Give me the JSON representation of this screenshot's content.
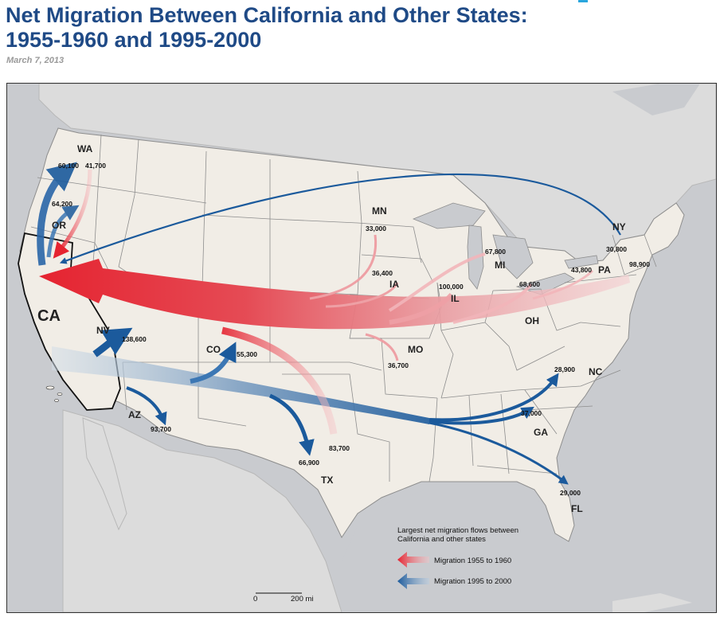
{
  "page": {
    "title": "Net Migration Between California and Other States: 1955-1960 and 1995-2000",
    "date": "March 7, 2013"
  },
  "map": {
    "states": [
      {
        "id": "wa",
        "label": "WA"
      },
      {
        "id": "or",
        "label": "OR"
      },
      {
        "id": "ca",
        "label": "CA"
      },
      {
        "id": "nv",
        "label": "NV"
      },
      {
        "id": "az",
        "label": "AZ"
      },
      {
        "id": "co",
        "label": "CO"
      },
      {
        "id": "tx",
        "label": "TX"
      },
      {
        "id": "mn",
        "label": "MN"
      },
      {
        "id": "ia",
        "label": "IA"
      },
      {
        "id": "mo",
        "label": "MO"
      },
      {
        "id": "il",
        "label": "IL"
      },
      {
        "id": "mi",
        "label": "MI"
      },
      {
        "id": "oh",
        "label": "OH"
      },
      {
        "id": "pa",
        "label": "PA"
      },
      {
        "id": "ny",
        "label": "NY"
      },
      {
        "id": "nc",
        "label": "NC"
      },
      {
        "id": "ga",
        "label": "GA"
      },
      {
        "id": "fl",
        "label": "FL"
      }
    ],
    "flows": [
      {
        "id": "wa-1995",
        "period": "1995-2000",
        "state": "WA",
        "value": "60,100"
      },
      {
        "id": "wa-1955",
        "period": "1955-1960",
        "state": "WA",
        "value": "41,700"
      },
      {
        "id": "or-1995",
        "period": "1995-2000",
        "state": "OR",
        "value": "64,200"
      },
      {
        "id": "mn-1955",
        "period": "1955-1960",
        "state": "MN",
        "value": "33,000"
      },
      {
        "id": "ia-1955",
        "period": "1955-1960",
        "state": "IA",
        "value": "36,400"
      },
      {
        "id": "mi-1955",
        "period": "1955-1960",
        "state": "MI",
        "value": "67,800"
      },
      {
        "id": "il-1955",
        "period": "1955-1960",
        "state": "IL",
        "value": "100,000"
      },
      {
        "id": "oh-1955",
        "period": "1955-1960",
        "state": "OH",
        "value": "68,600"
      },
      {
        "id": "pa-1955a",
        "period": "1955-1960",
        "state": "PA",
        "value": "43,800"
      },
      {
        "id": "ny-1955",
        "period": "1955-1960",
        "state": "NY",
        "value": "98,900"
      },
      {
        "id": "ny-1995",
        "period": "1995-2000",
        "state": "NY",
        "value": "30,800"
      },
      {
        "id": "mo-1955",
        "period": "1955-1960",
        "state": "MO",
        "value": "36,700"
      },
      {
        "id": "nv-1995",
        "period": "1995-2000",
        "state": "NV",
        "value": "138,600"
      },
      {
        "id": "co-1995",
        "period": "1995-2000",
        "state": "CO",
        "value": "55,300"
      },
      {
        "id": "az-1995",
        "period": "1995-2000",
        "state": "AZ",
        "value": "93,700"
      },
      {
        "id": "tx-1995",
        "period": "1995-2000",
        "state": "TX",
        "value": "66,900"
      },
      {
        "id": "tx-1955",
        "period": "1955-1960",
        "state": "TX",
        "value": "83,700"
      },
      {
        "id": "nc-1995",
        "period": "1995-2000",
        "state": "NC",
        "value": "28,900"
      },
      {
        "id": "ga-1995",
        "period": "1995-2000",
        "state": "GA",
        "value": "37,000"
      },
      {
        "id": "fl-1995",
        "period": "1995-2000",
        "state": "FL",
        "value": "29,000"
      }
    ],
    "legend": {
      "title": "Largest net migration flows between California and other states",
      "item_1955": "Migration 1955 to 1960",
      "item_1995": "Migration 1995 to 2000"
    },
    "scale": {
      "start": "0",
      "end": "200 mi"
    },
    "colors": {
      "flow_1955": "#e52330",
      "flow_1995": "#1b5a9c",
      "land": "#f1ede6",
      "water": "#c9cbcf",
      "title": "#1f4a86"
    }
  }
}
